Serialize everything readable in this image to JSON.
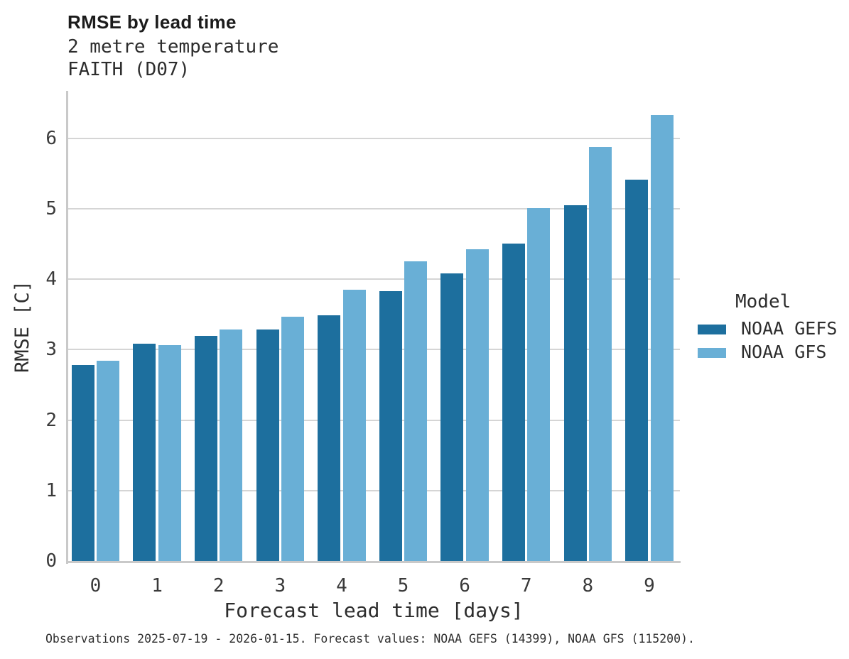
{
  "chart_data": {
    "type": "bar",
    "title": "RMSE by lead time",
    "subtitle": "2 metre temperature",
    "subtitle2": "FAITH (D07)",
    "xlabel": "Forecast lead time [days]",
    "ylabel": "RMSE [C]",
    "legend_title": "Model",
    "legend_position": "right",
    "caption": "Observations 2025-07-19 - 2026-01-15. Forecast values: NOAA GEFS (14399), NOAA GFS (115200).",
    "categories": [
      "0",
      "1",
      "2",
      "3",
      "4",
      "5",
      "6",
      "7",
      "8",
      "9"
    ],
    "yticks": [
      0,
      1,
      2,
      3,
      4,
      5,
      6
    ],
    "ylim": [
      0,
      6.7
    ],
    "grid": true,
    "series": [
      {
        "name": "NOAA GEFS",
        "color": "#1d6f9e",
        "values": [
          2.78,
          3.08,
          3.2,
          3.29,
          3.49,
          3.83,
          4.08,
          4.51,
          5.05,
          5.41
        ]
      },
      {
        "name": "NOAA GFS",
        "color": "#69afd6",
        "values": [
          2.84,
          3.06,
          3.29,
          3.47,
          3.85,
          4.25,
          4.43,
          5.01,
          5.88,
          6.33
        ]
      }
    ]
  },
  "colors": {
    "grid": "#d5d5d5",
    "axis": "#c9c9c9"
  }
}
